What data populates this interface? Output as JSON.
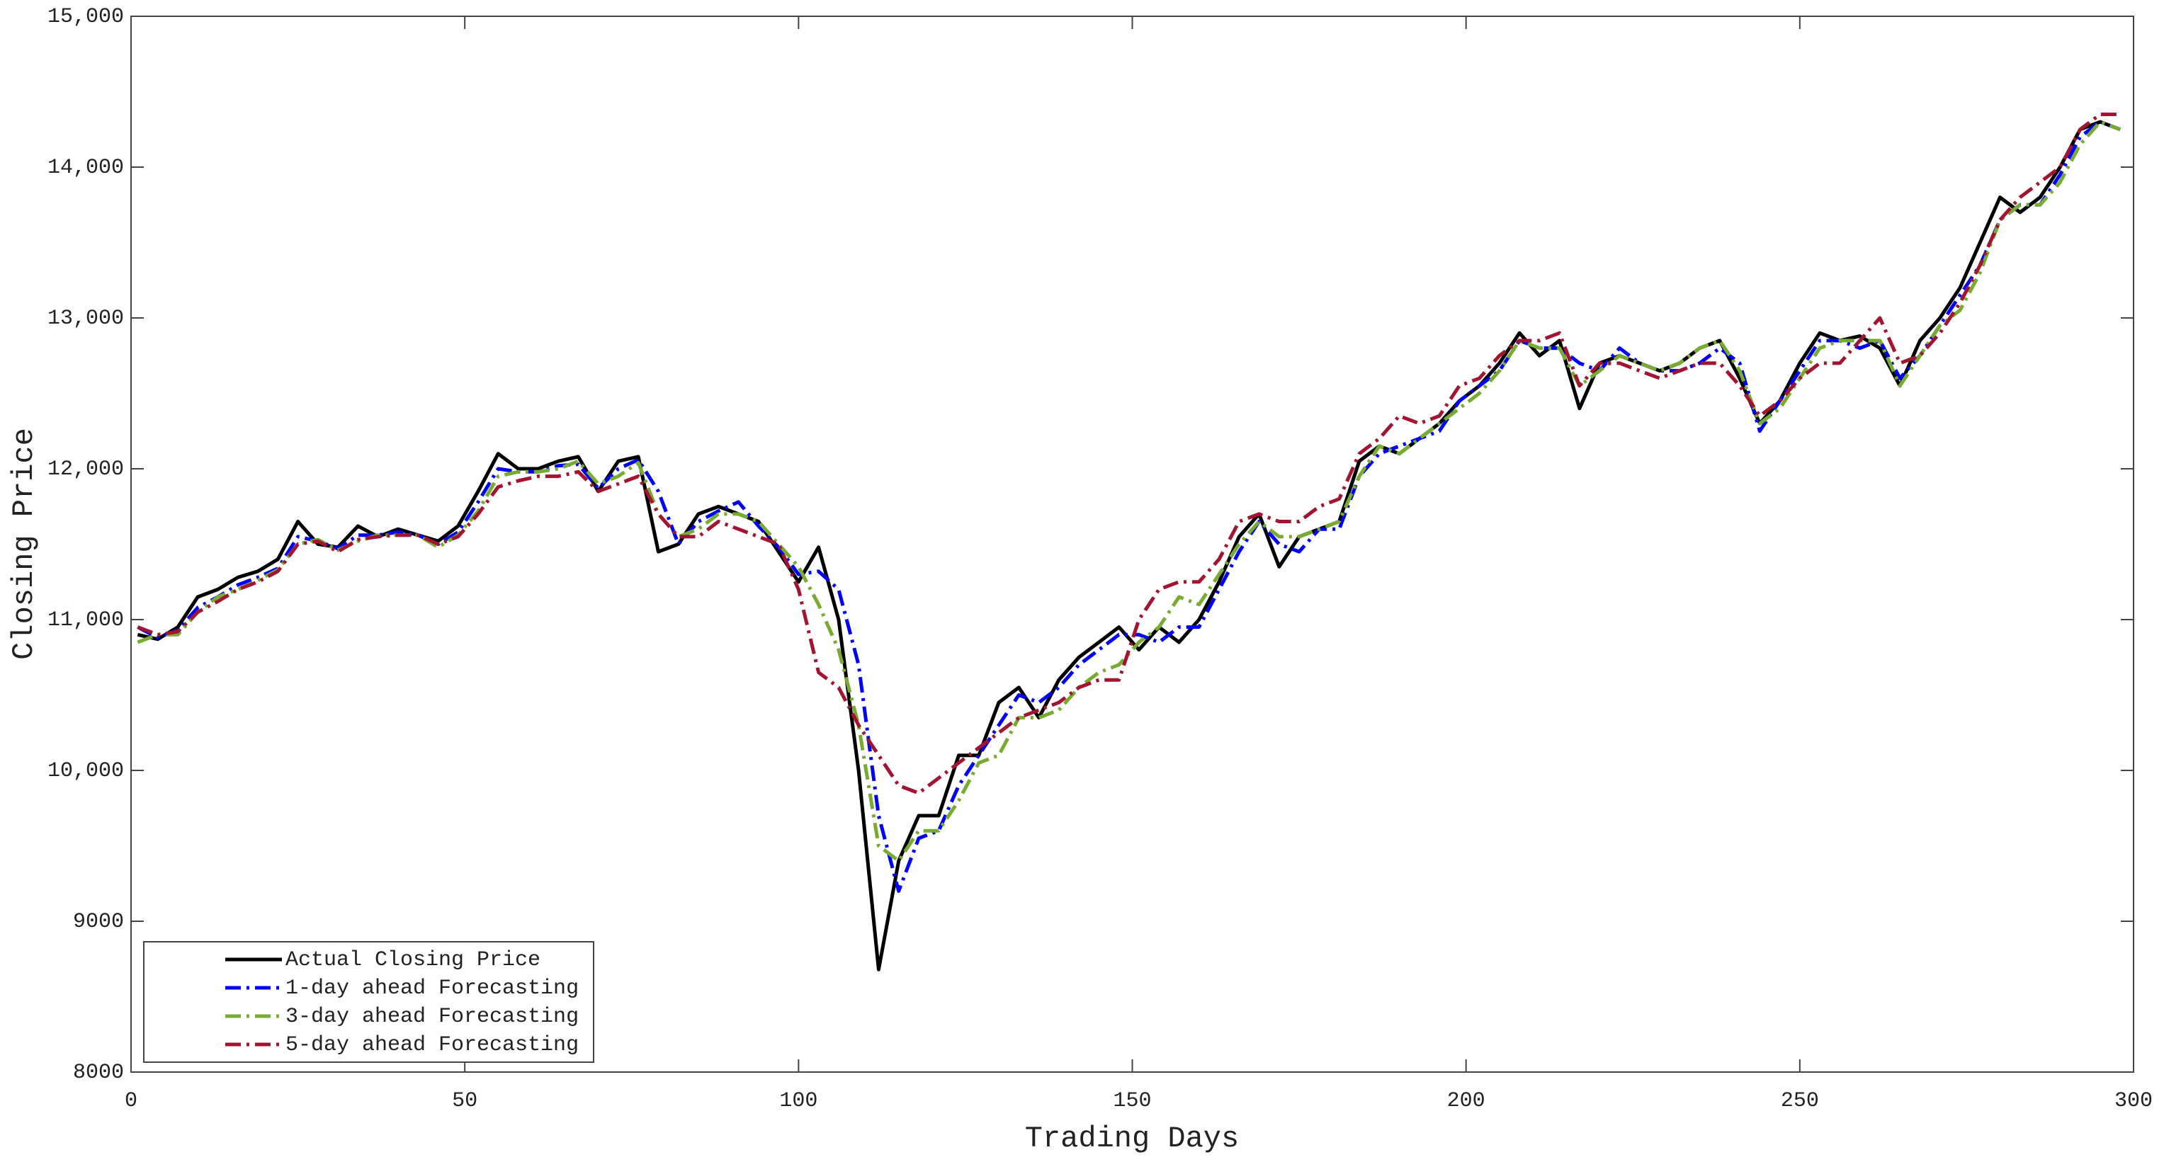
{
  "chart_data": {
    "type": "line",
    "x_label": "Trading Days",
    "y_label": "Closing Price",
    "xlim": [
      0,
      300
    ],
    "xticks": [
      0,
      50,
      100,
      150,
      200,
      250,
      300
    ],
    "ylim": [
      8000,
      15000
    ],
    "yticks": [
      8000,
      9000,
      {
        "value": 10000,
        "label": "10,000"
      },
      {
        "value": 11000,
        "label": "11,000"
      },
      {
        "value": 12000,
        "label": "12,000"
      },
      {
        "value": 13000,
        "label": "13,000"
      },
      {
        "value": 14000,
        "label": "14,000"
      },
      {
        "value": 15000,
        "label": "15,000"
      }
    ],
    "grid": false,
    "legend": "lower left",
    "x": [
      1,
      4,
      7,
      10,
      13,
      16,
      19,
      22,
      25,
      28,
      31,
      34,
      37,
      40,
      43,
      46,
      49,
      52,
      55,
      58,
      61,
      64,
      67,
      70,
      73,
      76,
      79,
      82,
      85,
      88,
      91,
      94,
      97,
      100,
      103,
      106,
      109,
      112,
      115,
      118,
      121,
      124,
      127,
      130,
      133,
      136,
      139,
      142,
      145,
      148,
      151,
      154,
      157,
      160,
      163,
      166,
      169,
      172,
      175,
      178,
      181,
      184,
      187,
      190,
      193,
      196,
      199,
      202,
      205,
      208,
      211,
      214,
      217,
      220,
      223,
      226,
      229,
      232,
      235,
      238,
      241,
      244,
      247,
      250,
      253,
      256,
      259,
      262,
      265,
      268,
      271,
      274,
      277,
      280,
      283,
      286,
      289,
      292,
      295,
      298
    ],
    "series": [
      {
        "name": "Actual Closing Price",
        "color": "#000000",
        "dash": "solid",
        "values": [
          10900,
          10870,
          10950,
          11150,
          11200,
          11280,
          11320,
          11400,
          11650,
          11500,
          11480,
          11620,
          11550,
          11600,
          11560,
          11520,
          11620,
          11850,
          12100,
          12000,
          12000,
          12050,
          12080,
          11850,
          12050,
          12080,
          11450,
          11500,
          11700,
          11750,
          11700,
          11650,
          11450,
          11250,
          11480,
          11000,
          10000,
          8680,
          9400,
          9700,
          9700,
          10100,
          10100,
          10450,
          10550,
          10350,
          10600,
          10750,
          10850,
          10950,
          10800,
          10950,
          10850,
          11000,
          11250,
          11550,
          11700,
          11350,
          11550,
          11600,
          11650,
          12050,
          12150,
          12100,
          12200,
          12300,
          12450,
          12550,
          12700,
          12900,
          12750,
          12850,
          12400,
          12700,
          12750,
          12700,
          12650,
          12700,
          12800,
          12850,
          12600,
          12300,
          12450,
          12700,
          12900,
          12850,
          12880,
          12800,
          12550,
          12850,
          13000,
          13200,
          13500,
          13800,
          13700,
          13800,
          14000,
          14250,
          14300,
          14250
        ]
      },
      {
        "name": "1-day ahead Forecasting",
        "color": "#0000ff",
        "dash": "dashdot",
        "values": [
          10950,
          10880,
          10930,
          11080,
          11150,
          11230,
          11280,
          11340,
          11550,
          11520,
          11470,
          11560,
          11560,
          11580,
          11560,
          11500,
          11580,
          11780,
          12000,
          11980,
          11980,
          12020,
          12030,
          11870,
          12000,
          12060,
          11850,
          11500,
          11650,
          11720,
          11780,
          11620,
          11480,
          11300,
          11320,
          11200,
          10700,
          9700,
          9200,
          9550,
          9600,
          9900,
          10100,
          10300,
          10500,
          10450,
          10550,
          10700,
          10800,
          10900,
          10900,
          10850,
          10950,
          10950,
          11200,
          11450,
          11650,
          11500,
          11450,
          11600,
          11600,
          11950,
          12100,
          12150,
          12200,
          12250,
          12450,
          12550,
          12650,
          12850,
          12800,
          12800,
          12700,
          12650,
          12800,
          12700,
          12650,
          12650,
          12700,
          12800,
          12700,
          12250,
          12450,
          12650,
          12850,
          12850,
          12800,
          12850,
          12600,
          12750,
          12950,
          13150,
          13350,
          13650,
          13750,
          13750,
          13950,
          14200,
          14300,
          14250
        ]
      },
      {
        "name": "3-day ahead Forecasting",
        "color": "#77ac30",
        "dash": "dashdot",
        "values": [
          10850,
          10900,
          10900,
          11050,
          11150,
          11200,
          11260,
          11330,
          11500,
          11530,
          11460,
          11520,
          11560,
          11560,
          11560,
          11480,
          11560,
          11720,
          11950,
          11980,
          11980,
          12000,
          12050,
          11900,
          11950,
          12040,
          11700,
          11550,
          11600,
          11700,
          11700,
          11650,
          11500,
          11350,
          11100,
          10800,
          10300,
          9500,
          9400,
          9600,
          9600,
          9800,
          10050,
          10100,
          10350,
          10350,
          10400,
          10550,
          10650,
          10700,
          10850,
          10950,
          11150,
          11100,
          11300,
          11500,
          11650,
          11550,
          11550,
          11600,
          11650,
          11950,
          12150,
          12100,
          12200,
          12300,
          12400,
          12500,
          12650,
          12850,
          12800,
          12800,
          12550,
          12650,
          12750,
          12700,
          12650,
          12700,
          12800,
          12850,
          12650,
          12300,
          12400,
          12600,
          12800,
          12850,
          12850,
          12850,
          12550,
          12750,
          12950,
          13050,
          13300,
          13650,
          13750,
          13750,
          13900,
          14150,
          14300,
          14250
        ]
      },
      {
        "name": "5-day ahead Forecasting",
        "color": "#a2142f",
        "dash": "dashdot",
        "values": [
          10950,
          10900,
          10920,
          11050,
          11120,
          11200,
          11250,
          11320,
          11500,
          11520,
          11450,
          11530,
          11550,
          11560,
          11560,
          11500,
          11550,
          11700,
          11880,
          11920,
          11950,
          11950,
          11980,
          11850,
          11900,
          11950,
          11700,
          11550,
          11550,
          11650,
          11600,
          11550,
          11500,
          11200,
          10650,
          10550,
          10300,
          10100,
          9900,
          9850,
          9950,
          10050,
          10150,
          10250,
          10350,
          10400,
          10450,
          10550,
          10600,
          10600,
          11000,
          11200,
          11250,
          11250,
          11400,
          11650,
          11700,
          11650,
          11650,
          11750,
          11800,
          12100,
          12200,
          12350,
          12300,
          12350,
          12550,
          12600,
          12750,
          12850,
          12850,
          12900,
          12550,
          12700,
          12700,
          12650,
          12600,
          12650,
          12700,
          12700,
          12550,
          12350,
          12450,
          12600,
          12700,
          12700,
          12850,
          13000,
          12700,
          12750,
          12900,
          13100,
          13350,
          13650,
          13800,
          13900,
          14000,
          14250,
          14350,
          14350
        ]
      }
    ]
  }
}
